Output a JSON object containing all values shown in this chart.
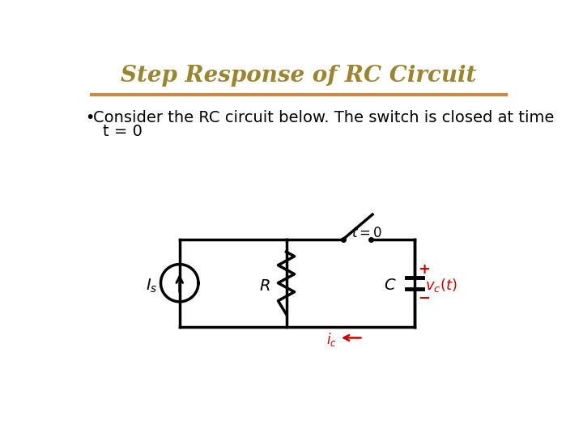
{
  "title": "Step Response of RC Circuit",
  "title_color": "#9B8530",
  "title_fontsize": 20,
  "separator_color": "#D2874A",
  "bg_color": "#FFFFFF",
  "body_fontsize": 14,
  "circuit_color": "#000000",
  "red_color": "#CC0000"
}
